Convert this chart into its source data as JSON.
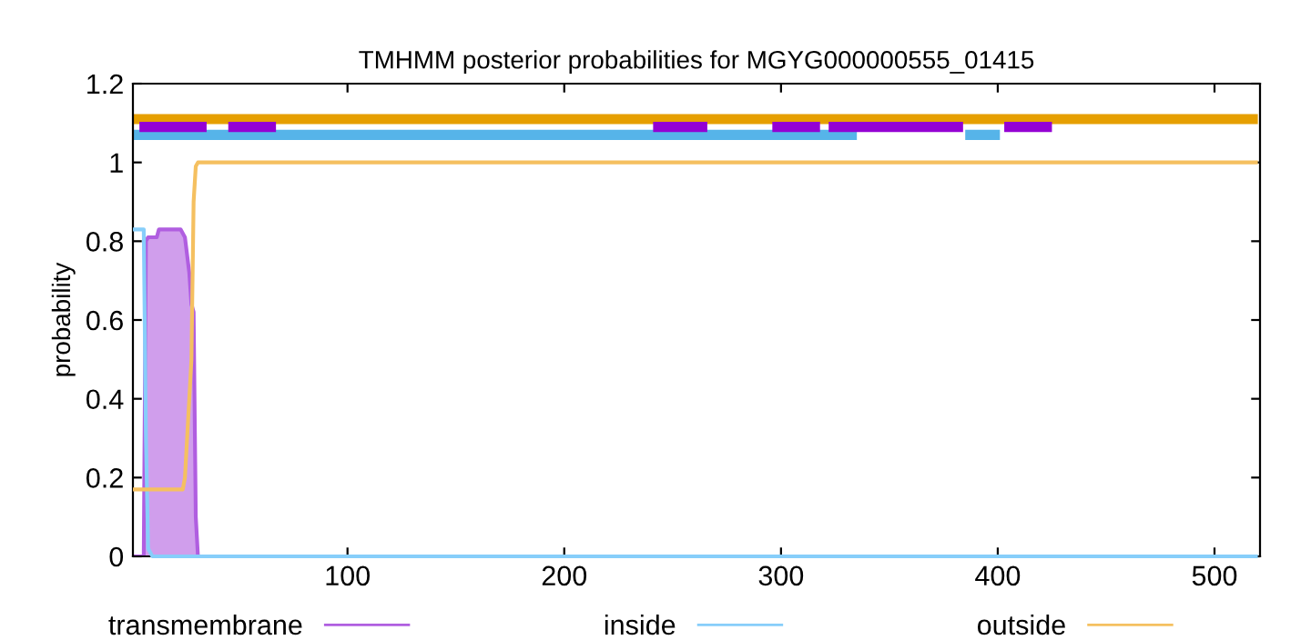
{
  "chart_data": {
    "type": "line",
    "title": "TMHMM posterior probabilities for MGYG000000555_01415",
    "ylabel": "probability",
    "xlim": [
      1,
      521
    ],
    "ylim": [
      0,
      1.2
    ],
    "xticks": [
      100,
      200,
      300,
      400,
      500
    ],
    "yticks": [
      0,
      0.2,
      0.4,
      0.6,
      0.8,
      1,
      1.2
    ],
    "legend": "bottom",
    "grid": false,
    "series": [
      {
        "name": "transmembrane",
        "type": "area",
        "color": "#b05ee0",
        "x": [
          1,
          6,
          7,
          8,
          12,
          13,
          23,
          25,
          27,
          28,
          29,
          30,
          31
        ],
        "values": [
          0,
          0,
          0.8,
          0.81,
          0.81,
          0.83,
          0.83,
          0.81,
          0.72,
          0.64,
          0.62,
          0.1,
          0
        ]
      },
      {
        "name": "inside",
        "color": "#87cefa",
        "x": [
          1,
          6,
          7,
          8,
          9,
          10,
          12,
          520
        ],
        "values": [
          0.83,
          0.83,
          0.3,
          0.02,
          0.01,
          0,
          0,
          0
        ]
      },
      {
        "name": "outside",
        "color": "#f5c060",
        "x": [
          1,
          24,
          25,
          28,
          29,
          30,
          31,
          100,
          520
        ],
        "values": [
          0.17,
          0.17,
          0.2,
          0.5,
          0.9,
          0.99,
          1,
          1,
          1
        ]
      },
      {
        "color": "#e69f00",
        "x": [
          1,
          520
        ],
        "values": [
          1.11,
          1.11
        ]
      },
      {
        "color": "#56b4e9",
        "x": [
          1,
          335
        ],
        "values": [
          1.07,
          1.07
        ]
      },
      {
        "color": "#56b4e9",
        "x": [
          385,
          401
        ],
        "values": [
          1.07,
          1.07
        ]
      },
      {
        "color": "#9400d3",
        "x": [
          4,
          35
        ],
        "values": [
          1.09,
          1.09
        ]
      },
      {
        "color": "#9400d3",
        "x": [
          45,
          67
        ],
        "values": [
          1.09,
          1.09
        ]
      },
      {
        "color": "#9400d3",
        "x": [
          241,
          266
        ],
        "values": [
          1.09,
          1.09
        ]
      },
      {
        "color": "#9400d3",
        "x": [
          296,
          318
        ],
        "values": [
          1.09,
          1.09
        ]
      },
      {
        "color": "#9400d3",
        "x": [
          322,
          384
        ],
        "values": [
          1.09,
          1.09
        ]
      },
      {
        "color": "#9400d3",
        "x": [
          403,
          425
        ],
        "values": [
          1.09,
          1.09
        ]
      }
    ]
  }
}
